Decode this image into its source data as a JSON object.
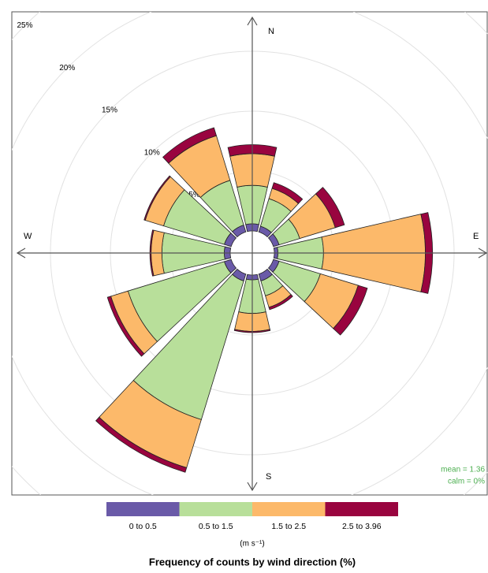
{
  "chart_data": {
    "type": "windrose",
    "title": "Frequency of counts by wind direction (%)",
    "legend_title": "(m s⁻¹)",
    "compass": [
      "N",
      "E",
      "S",
      "W"
    ],
    "annotations": [
      "mean = 1.36",
      "calm = 0%"
    ],
    "x": [
      0,
      30,
      60,
      90,
      120,
      150,
      180,
      210,
      240,
      270,
      300,
      330
    ],
    "series": [
      {
        "name": "0 to 0.5",
        "color": "#6a5aa8",
        "values": [
          0.6,
          0.5,
          0.5,
          0.3,
          0.5,
          0.6,
          0.4,
          0.6,
          0.6,
          0.5,
          0.6,
          0.6
        ]
      },
      {
        "name": "0.5 to 1.5",
        "color": "#b8df9a",
        "values": [
          3.2,
          2.4,
          1.8,
          3.8,
          3.6,
          1.3,
          2.8,
          12.1,
          8.4,
          5.2,
          5.3,
          3.9
        ]
      },
      {
        "name": "1.5 to 2.5",
        "color": "#fcb96a",
        "values": [
          2.65,
          0.9,
          3.1,
          8.5,
          3.3,
          1.0,
          1.5,
          4.2,
          1.5,
          0.9,
          1.6,
          3.9
        ]
      },
      {
        "name": "2.5 to 3.96",
        "color": "#99043f",
        "values": [
          0.75,
          0.5,
          0.8,
          0.6,
          0.8,
          0.2,
          0.1,
          0.4,
          0.3,
          0.1,
          0.1,
          0.7
        ]
      }
    ],
    "ylim": [
      0,
      25
    ],
    "yticks": [
      {
        "value": 5,
        "label": "5%"
      },
      {
        "value": 10,
        "label": "10%"
      },
      {
        "value": 15,
        "label": "15%"
      },
      {
        "value": 20,
        "label": "20%"
      },
      {
        "value": 25,
        "label": "25%"
      }
    ],
    "grid": true
  }
}
